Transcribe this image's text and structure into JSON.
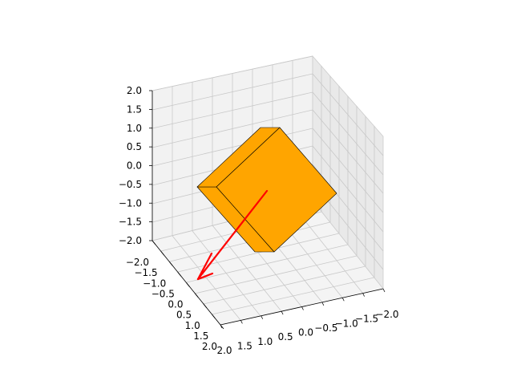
{
  "chart_data": {
    "type": "3d-surface",
    "title": "",
    "z_axis": {
      "ticks": [
        "2.0",
        "1.5",
        "1.0",
        "0.5",
        "0.0",
        "−0.5",
        "−1.0",
        "−1.5",
        "−2.0"
      ],
      "range": [
        -2.0,
        2.0
      ]
    },
    "left_axis": {
      "ticks": [
        "−2.0",
        "−1.5",
        "−1.0",
        "−0.5",
        "0.0",
        "0.5",
        "1.0",
        "1.5",
        "2.0"
      ],
      "range": [
        -2.0,
        2.0
      ]
    },
    "bottom_axis": {
      "ticks": [
        "2.0",
        "1.5",
        "1.0",
        "0.5",
        "0.0",
        "−0.5",
        "−1.0",
        "−1.5",
        "−2.0"
      ],
      "range": [
        -2.0,
        2.0
      ]
    },
    "grid": true,
    "objects": [
      {
        "kind": "box",
        "color": "#FFA500",
        "edge_color": "#000000"
      },
      {
        "kind": "arrow",
        "color": "#FF0000"
      }
    ]
  }
}
